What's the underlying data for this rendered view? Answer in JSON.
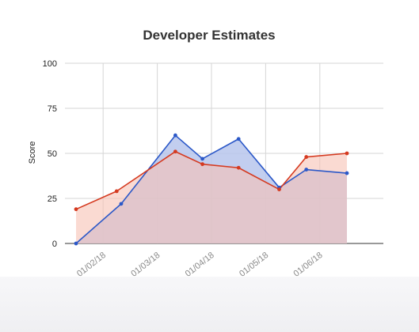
{
  "chart_data": {
    "type": "area",
    "title": "Developer Estimates",
    "xlabel": "",
    "ylabel": "Score",
    "ylim": [
      0,
      100
    ],
    "yticks": [
      "0",
      "25",
      "50",
      "75",
      "100"
    ],
    "xtick_labels": [
      "01/02/18",
      "01/03/18",
      "01/04/18",
      "01/05/18",
      "01/06/18"
    ],
    "x_range": [
      "01/01/18 12:00",
      "01/06/18 12:00"
    ],
    "grid": true,
    "legend": "none",
    "series": [
      {
        "color": "#2b58c8",
        "fill": "#b7c5ec",
        "points": [
          {
            "x": "01/01/18 12:00",
            "y": 0
          },
          {
            "x": "01/02/18 08:00",
            "y": 22
          },
          {
            "x": "01/03/18 08:00",
            "y": 60
          },
          {
            "x": "01/03/18 20:00",
            "y": 47
          },
          {
            "x": "01/04/18 12:00",
            "y": 58
          },
          {
            "x": "01/05/18 06:00",
            "y": 31
          },
          {
            "x": "01/05/18 18:00",
            "y": 41
          },
          {
            "x": "01/06/18 12:00",
            "y": 39
          }
        ]
      },
      {
        "color": "#d53a20",
        "fill": "#f6c2b4",
        "points": [
          {
            "x": "01/01/18 12:00",
            "y": 19
          },
          {
            "x": "01/02/18 06:00",
            "y": 29
          },
          {
            "x": "01/03/18 08:00",
            "y": 51
          },
          {
            "x": "01/03/18 20:00",
            "y": 44
          },
          {
            "x": "01/04/18 12:00",
            "y": 42
          },
          {
            "x": "01/05/18 06:00",
            "y": 30
          },
          {
            "x": "01/05/18 18:00",
            "y": 48
          },
          {
            "x": "01/06/18 12:00",
            "y": 50
          }
        ]
      }
    ]
  }
}
